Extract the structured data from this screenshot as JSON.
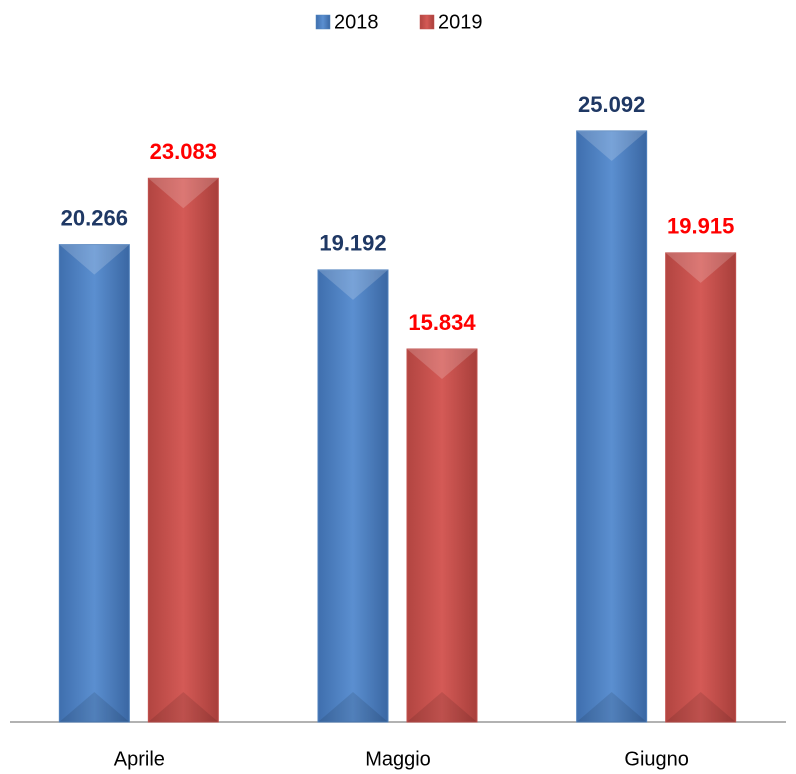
{
  "chart_data": {
    "type": "bar",
    "categories": [
      "Aprile",
      "Maggio",
      "Giugno"
    ],
    "series": [
      {
        "name": "2018",
        "color": "#4f81bd",
        "label_color": "#1f3864",
        "values": [
          20.266,
          19.192,
          25.092
        ]
      },
      {
        "name": "2019",
        "color": "#c0504d",
        "label_color": "#ff0000",
        "values": [
          23.083,
          15.834,
          19.915
        ]
      }
    ],
    "ylim": [
      0,
      27
    ],
    "legend": "top"
  }
}
